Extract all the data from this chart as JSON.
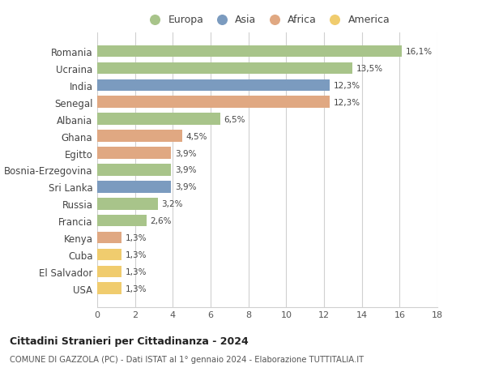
{
  "countries": [
    "Romania",
    "Ucraina",
    "India",
    "Senegal",
    "Albania",
    "Ghana",
    "Egitto",
    "Bosnia-Erzegovina",
    "Sri Lanka",
    "Russia",
    "Francia",
    "Kenya",
    "Cuba",
    "El Salvador",
    "USA"
  ],
  "values": [
    16.1,
    13.5,
    12.3,
    12.3,
    6.5,
    4.5,
    3.9,
    3.9,
    3.9,
    3.2,
    2.6,
    1.3,
    1.3,
    1.3,
    1.3
  ],
  "labels": [
    "16,1%",
    "13,5%",
    "12,3%",
    "12,3%",
    "6,5%",
    "4,5%",
    "3,9%",
    "3,9%",
    "3,9%",
    "3,2%",
    "2,6%",
    "1,3%",
    "1,3%",
    "1,3%",
    "1,3%"
  ],
  "continents": [
    "Europa",
    "Europa",
    "Asia",
    "Africa",
    "Europa",
    "Africa",
    "Africa",
    "Europa",
    "Asia",
    "Europa",
    "Europa",
    "Africa",
    "America",
    "America",
    "America"
  ],
  "colors": {
    "Europa": "#a8c48a",
    "Asia": "#7b9bbf",
    "Africa": "#e0a882",
    "America": "#f0cc6e"
  },
  "legend_order": [
    "Europa",
    "Asia",
    "Africa",
    "America"
  ],
  "title": "Cittadini Stranieri per Cittadinanza - 2024",
  "subtitle": "COMUNE DI GAZZOLA (PC) - Dati ISTAT al 1° gennaio 2024 - Elaborazione TUTTITALIA.IT",
  "xlim": [
    0,
    18
  ],
  "xticks": [
    0,
    2,
    4,
    6,
    8,
    10,
    12,
    14,
    16,
    18
  ],
  "bg_color": "#ffffff",
  "grid_color": "#d0d0d0",
  "bar_height": 0.7
}
